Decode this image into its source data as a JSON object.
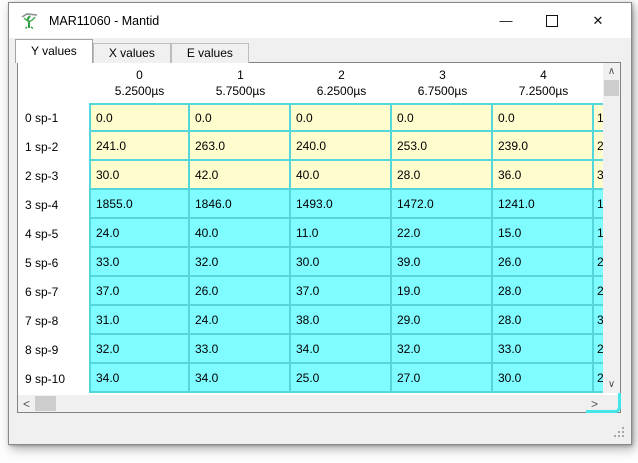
{
  "window": {
    "title": "MAR11060 - Mantid"
  },
  "icons": {
    "minimize": "—",
    "close": "✕",
    "scroll_up": "∧",
    "scroll_down": "∨",
    "scroll_left": "<",
    "scroll_right": ">"
  },
  "tabs": [
    {
      "label": "Y values",
      "active": true
    },
    {
      "label": "X values",
      "active": false
    },
    {
      "label": "E values",
      "active": false
    }
  ],
  "table": {
    "columns": [
      {
        "num": "0",
        "time": "5.2500µs"
      },
      {
        "num": "1",
        "time": "5.7500µs"
      },
      {
        "num": "2",
        "time": "6.2500µs"
      },
      {
        "num": "3",
        "time": "6.7500µs"
      },
      {
        "num": "4",
        "time": "7.2500µs"
      }
    ],
    "rows": [
      {
        "label": "0 sp-1",
        "highlight": "yellow",
        "values": [
          "0.0",
          "0.0",
          "0.0",
          "0.0",
          "0.0"
        ]
      },
      {
        "label": "1 sp-2",
        "highlight": "yellow",
        "values": [
          "241.0",
          "263.0",
          "240.0",
          "253.0",
          "239.0"
        ]
      },
      {
        "label": "2 sp-3",
        "highlight": "yellow",
        "values": [
          "30.0",
          "42.0",
          "40.0",
          "28.0",
          "36.0"
        ]
      },
      {
        "label": "3 sp-4",
        "highlight": "cyan",
        "values": [
          "1855.0",
          "1846.0",
          "1493.0",
          "1472.0",
          "1241.0"
        ]
      },
      {
        "label": "4 sp-5",
        "highlight": "cyan",
        "values": [
          "24.0",
          "40.0",
          "11.0",
          "22.0",
          "15.0"
        ]
      },
      {
        "label": "5 sp-6",
        "highlight": "cyan",
        "values": [
          "33.0",
          "32.0",
          "30.0",
          "39.0",
          "26.0"
        ]
      },
      {
        "label": "6 sp-7",
        "highlight": "cyan",
        "values": [
          "37.0",
          "26.0",
          "37.0",
          "19.0",
          "28.0"
        ]
      },
      {
        "label": "7 sp-8",
        "highlight": "cyan",
        "values": [
          "31.0",
          "24.0",
          "38.0",
          "29.0",
          "28.0"
        ]
      },
      {
        "label": "8 sp-9",
        "highlight": "cyan",
        "values": [
          "32.0",
          "33.0",
          "34.0",
          "32.0",
          "33.0"
        ]
      },
      {
        "label": "9 sp-10",
        "highlight": "cyan",
        "values": [
          "34.0",
          "34.0",
          "25.0",
          "27.0",
          "30.0"
        ]
      }
    ],
    "clipped_fragments": [
      "1",
      "2",
      "3",
      "1",
      "1",
      "2",
      "2",
      "3",
      "2",
      "2"
    ]
  },
  "colors": {
    "row_yellow": "#FFFCCD",
    "row_cyan": "#7FFCFF",
    "grid": "#55D6DA",
    "corner_highlight": "#43E6EA",
    "titlebar_bg": "#FFFFFF",
    "window_bg": "#F0F0F0"
  }
}
